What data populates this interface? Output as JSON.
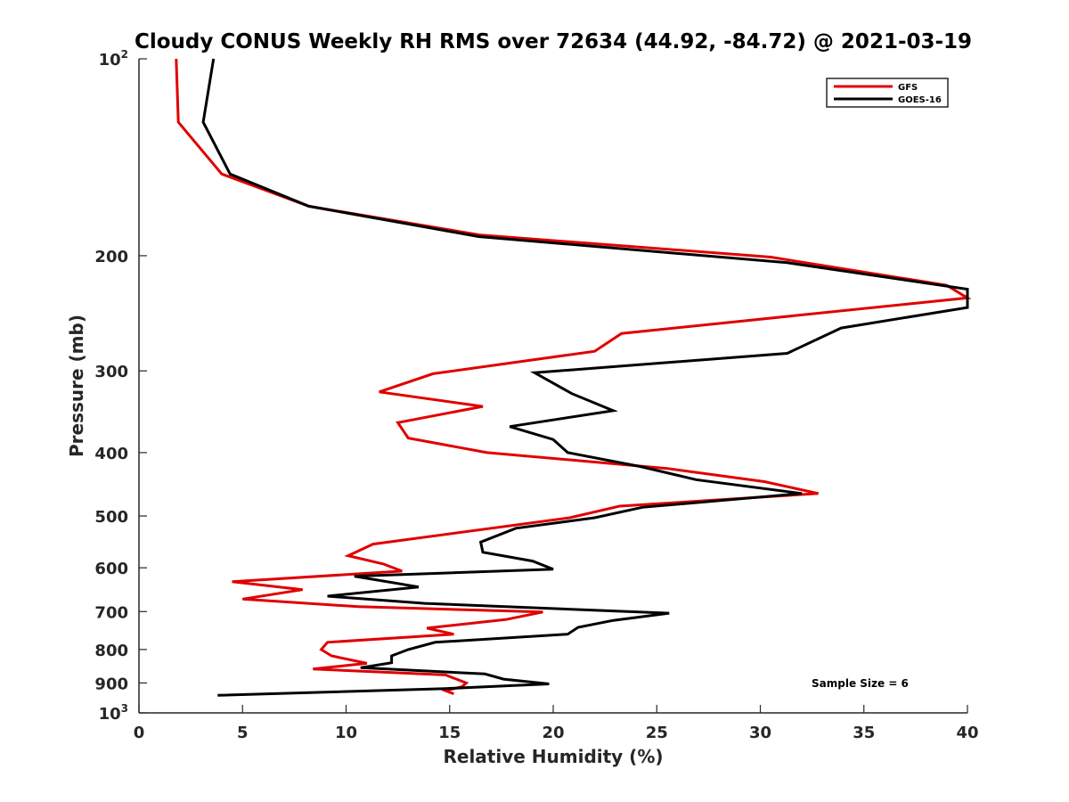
{
  "chart_data": {
    "type": "line",
    "title": "Cloudy CONUS Weekly RH RMS over 72634 (44.92, -84.72) @ 2021-03-19",
    "xlabel": "Relative Humidity (%)",
    "ylabel": "Pressure (mb)",
    "xlim": [
      0,
      40
    ],
    "ylim": [
      100,
      1000
    ],
    "y_scale": "log",
    "y_reversed": true,
    "grid": false,
    "legend_position": "top-right",
    "x_ticks": [
      {
        "value": 0,
        "label": "0"
      },
      {
        "value": 5,
        "label": "5"
      },
      {
        "value": 10,
        "label": "10"
      },
      {
        "value": 15,
        "label": "15"
      },
      {
        "value": 20,
        "label": "20"
      },
      {
        "value": 25,
        "label": "25"
      },
      {
        "value": 30,
        "label": "30"
      },
      {
        "value": 35,
        "label": "35"
      },
      {
        "value": 40,
        "label": "40"
      }
    ],
    "y_ticks": [
      {
        "value": 100,
        "base": "10",
        "exp": "2"
      },
      {
        "value": 200,
        "base": "200",
        "exp": ""
      },
      {
        "value": 300,
        "base": "300",
        "exp": ""
      },
      {
        "value": 400,
        "base": "400",
        "exp": ""
      },
      {
        "value": 500,
        "base": "500",
        "exp": ""
      },
      {
        "value": 600,
        "base": "600",
        "exp": ""
      },
      {
        "value": 700,
        "base": "700",
        "exp": ""
      },
      {
        "value": 800,
        "base": "800",
        "exp": ""
      },
      {
        "value": 900,
        "base": "900",
        "exp": ""
      },
      {
        "value": 1000,
        "base": "10",
        "exp": "3"
      }
    ],
    "series": [
      {
        "name": "GFS",
        "color": "#e00000",
        "points": [
          [
            1.8,
            100
          ],
          [
            1.9,
            125
          ],
          [
            4.0,
            150
          ],
          [
            8.2,
            168
          ],
          [
            16.5,
            186
          ],
          [
            30.5,
            201
          ],
          [
            39.0,
            222
          ],
          [
            40.0,
            232
          ],
          [
            23.3,
            263
          ],
          [
            22.0,
            280
          ],
          [
            14.2,
            303
          ],
          [
            11.6,
            323
          ],
          [
            16.6,
            340
          ],
          [
            12.5,
            360
          ],
          [
            13.0,
            380
          ],
          [
            16.8,
            400
          ],
          [
            25.5,
            423
          ],
          [
            30.2,
            443
          ],
          [
            32.8,
            462
          ],
          [
            23.2,
            483
          ],
          [
            20.8,
            503
          ],
          [
            11.3,
            552
          ],
          [
            10.1,
            575
          ],
          [
            11.8,
            592
          ],
          [
            12.7,
            607
          ],
          [
            4.5,
            630
          ],
          [
            7.9,
            648
          ],
          [
            5.0,
            670
          ],
          [
            10.6,
            688
          ],
          [
            19.5,
            701
          ],
          [
            17.7,
            720
          ],
          [
            13.9,
            742
          ],
          [
            15.2,
            758
          ],
          [
            9.1,
            780
          ],
          [
            8.8,
            800
          ],
          [
            9.3,
            818
          ],
          [
            11.0,
            840
          ],
          [
            8.4,
            857
          ],
          [
            14.8,
            875
          ],
          [
            15.8,
            900
          ],
          [
            15.6,
            912
          ],
          [
            14.8,
            925
          ],
          [
            15.2,
            935
          ]
        ]
      },
      {
        "name": "GOES-16",
        "color": "#000000",
        "points": [
          [
            3.6,
            100
          ],
          [
            3.1,
            125
          ],
          [
            4.4,
            150
          ],
          [
            8.2,
            168
          ],
          [
            16.4,
            187
          ],
          [
            31.3,
            205
          ],
          [
            40.0,
            225
          ],
          [
            40.0,
            240
          ],
          [
            33.9,
            258
          ],
          [
            31.3,
            282
          ],
          [
            19.1,
            302
          ],
          [
            20.9,
            325
          ],
          [
            22.9,
            345
          ],
          [
            17.9,
            365
          ],
          [
            20.0,
            382
          ],
          [
            20.7,
            400
          ],
          [
            24.2,
            420
          ],
          [
            26.9,
            440
          ],
          [
            32.0,
            462
          ],
          [
            24.3,
            485
          ],
          [
            22.0,
            503
          ],
          [
            18.2,
            522
          ],
          [
            16.5,
            548
          ],
          [
            16.6,
            568
          ],
          [
            19.0,
            586
          ],
          [
            20.0,
            603
          ],
          [
            10.4,
            618
          ],
          [
            13.5,
            642
          ],
          [
            9.1,
            663
          ],
          [
            13.8,
            680
          ],
          [
            25.6,
            704
          ],
          [
            22.9,
            722
          ],
          [
            21.2,
            740
          ],
          [
            20.7,
            758
          ],
          [
            14.3,
            780
          ],
          [
            13.0,
            800
          ],
          [
            12.2,
            818
          ],
          [
            12.2,
            838
          ],
          [
            10.7,
            853
          ],
          [
            16.7,
            872
          ],
          [
            17.6,
            888
          ],
          [
            19.8,
            903
          ],
          [
            14.8,
            918
          ],
          [
            3.8,
            940
          ]
        ]
      }
    ],
    "annotation": "Sample Size = 6"
  }
}
